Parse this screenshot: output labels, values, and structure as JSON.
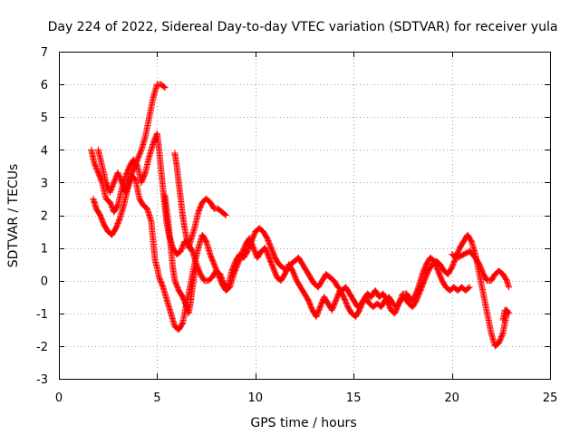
{
  "chart_data": {
    "type": "scatter",
    "title": "Day 224 of 2022, Sidereal Day-to-day VTEC variation (SDTVAR) for receiver yula",
    "xlabel": "GPS time / hours",
    "ylabel": "SDTVAR / TECUs",
    "xlim": [
      0,
      25
    ],
    "ylim": [
      -3,
      7
    ],
    "xticks": [
      0,
      5,
      10,
      15,
      20,
      25
    ],
    "yticks": [
      -3,
      -2,
      -1,
      0,
      1,
      2,
      3,
      4,
      5,
      6,
      7
    ],
    "grid": true,
    "marker": "+",
    "series": [
      {
        "name": "SDTVAR",
        "color": "#ff0000",
        "tracks": [
          [
            [
              1.65,
              4.0
            ],
            [
              1.8,
              3.6
            ],
            [
              2.0,
              3.3
            ],
            [
              2.2,
              3.0
            ],
            [
              2.4,
              2.5
            ],
            [
              2.6,
              2.4
            ],
            [
              2.8,
              2.1
            ],
            [
              3.0,
              2.3
            ],
            [
              3.2,
              2.8
            ],
            [
              3.4,
              3.2
            ],
            [
              3.6,
              3.5
            ],
            [
              3.8,
              3.7
            ],
            [
              4.0,
              3.5
            ],
            [
              4.2,
              3.0
            ],
            [
              4.4,
              3.3
            ],
            [
              4.6,
              3.8
            ],
            [
              4.8,
              4.2
            ],
            [
              5.0,
              4.5
            ],
            [
              5.1,
              4.0
            ],
            [
              5.2,
              3.4
            ],
            [
              5.3,
              2.8
            ],
            [
              5.4,
              2.2
            ],
            [
              5.5,
              1.7
            ],
            [
              5.6,
              1.4
            ],
            [
              5.7,
              1.2
            ],
            [
              5.8,
              1.0
            ],
            [
              6.0,
              0.8
            ],
            [
              6.2,
              0.9
            ],
            [
              6.4,
              1.2
            ],
            [
              6.6,
              1.1
            ],
            [
              6.8,
              0.9
            ],
            [
              7.0,
              0.5
            ],
            [
              7.2,
              0.2
            ],
            [
              7.4,
              0.0
            ],
            [
              7.6,
              0.0
            ],
            [
              7.8,
              0.1
            ],
            [
              8.0,
              0.3
            ],
            [
              8.2,
              0.2
            ],
            [
              8.4,
              -0.1
            ],
            [
              8.6,
              -0.2
            ],
            [
              8.8,
              0.3
            ],
            [
              9.0,
              0.6
            ],
            [
              9.2,
              0.8
            ],
            [
              9.4,
              0.7
            ],
            [
              9.6,
              0.9
            ],
            [
              9.8,
              1.2
            ],
            [
              10.0,
              1.5
            ],
            [
              10.2,
              1.6
            ],
            [
              10.4,
              1.5
            ],
            [
              10.6,
              1.3
            ],
            [
              10.8,
              1.0
            ],
            [
              11.0,
              0.7
            ],
            [
              11.2,
              0.5
            ],
            [
              11.4,
              0.4
            ],
            [
              11.6,
              0.3
            ],
            [
              11.8,
              0.5
            ],
            [
              12.0,
              0.6
            ],
            [
              12.2,
              0.7
            ],
            [
              12.4,
              0.5
            ],
            [
              12.6,
              0.3
            ],
            [
              12.8,
              0.1
            ],
            [
              13.0,
              -0.1
            ],
            [
              13.2,
              -0.2
            ],
            [
              13.4,
              0.0
            ],
            [
              13.6,
              0.2
            ],
            [
              13.8,
              0.1
            ],
            [
              14.0,
              0.0
            ],
            [
              14.2,
              -0.2
            ],
            [
              14.4,
              -0.3
            ],
            [
              14.6,
              -0.2
            ],
            [
              14.8,
              -0.4
            ],
            [
              15.0,
              -0.6
            ],
            [
              15.2,
              -0.8
            ],
            [
              15.4,
              -0.7
            ],
            [
              15.6,
              -0.5
            ],
            [
              15.8,
              -0.7
            ],
            [
              16.0,
              -0.8
            ],
            [
              16.2,
              -0.7
            ],
            [
              16.4,
              -0.8
            ],
            [
              16.6,
              -0.6
            ],
            [
              16.8,
              -0.5
            ],
            [
              17.0,
              -0.7
            ],
            [
              17.2,
              -0.8
            ],
            [
              17.4,
              -0.6
            ],
            [
              17.6,
              -0.5
            ],
            [
              17.8,
              -0.7
            ],
            [
              18.0,
              -0.8
            ],
            [
              18.2,
              -0.6
            ],
            [
              18.4,
              -0.3
            ],
            [
              18.6,
              0.0
            ],
            [
              18.8,
              0.3
            ],
            [
              19.0,
              0.5
            ],
            [
              19.2,
              0.6
            ],
            [
              19.4,
              0.5
            ],
            [
              19.6,
              0.3
            ],
            [
              19.8,
              0.2
            ],
            [
              20.0,
              0.4
            ],
            [
              20.2,
              0.7
            ],
            [
              20.4,
              1.0
            ],
            [
              20.6,
              1.2
            ],
            [
              20.8,
              1.4
            ],
            [
              21.0,
              1.2
            ],
            [
              21.2,
              0.8
            ],
            [
              21.4,
              0.2
            ],
            [
              21.6,
              -0.4
            ],
            [
              21.8,
              -1.0
            ],
            [
              22.0,
              -1.6
            ],
            [
              22.2,
              -2.0
            ],
            [
              22.4,
              -1.9
            ],
            [
              22.6,
              -1.6
            ],
            [
              22.8,
              -1.0
            ]
          ],
          [
            [
              1.75,
              2.5
            ],
            [
              1.9,
              2.2
            ],
            [
              2.1,
              2.0
            ],
            [
              2.3,
              1.7
            ],
            [
              2.5,
              1.5
            ],
            [
              2.7,
              1.4
            ],
            [
              2.9,
              1.6
            ],
            [
              3.1,
              1.9
            ],
            [
              3.3,
              2.3
            ],
            [
              3.5,
              2.8
            ],
            [
              3.7,
              3.2
            ],
            [
              3.9,
              3.1
            ],
            [
              4.1,
              2.5
            ],
            [
              4.3,
              2.3
            ],
            [
              4.5,
              2.2
            ],
            [
              4.7,
              1.8
            ],
            [
              4.8,
              1.2
            ],
            [
              4.9,
              0.6
            ],
            [
              5.0,
              0.4
            ],
            [
              5.1,
              0.1
            ],
            [
              5.3,
              -0.2
            ],
            [
              5.5,
              -0.6
            ],
            [
              5.7,
              -1.0
            ],
            [
              5.9,
              -1.4
            ],
            [
              6.1,
              -1.5
            ],
            [
              6.3,
              -1.3
            ],
            [
              6.5,
              -0.7
            ],
            [
              6.7,
              -0.1
            ],
            [
              6.9,
              0.5
            ],
            [
              7.1,
              1.0
            ],
            [
              7.3,
              1.4
            ],
            [
              7.5,
              1.2
            ],
            [
              7.7,
              0.8
            ],
            [
              7.9,
              0.5
            ],
            [
              8.1,
              0.2
            ],
            [
              8.3,
              -0.1
            ],
            [
              8.5,
              -0.3
            ],
            [
              8.7,
              -0.2
            ],
            [
              8.9,
              0.2
            ],
            [
              9.1,
              0.5
            ],
            [
              9.3,
              0.8
            ],
            [
              9.5,
              1.1
            ],
            [
              9.7,
              1.3
            ],
            [
              9.9,
              1.0
            ],
            [
              10.1,
              0.7
            ],
            [
              10.3,
              0.9
            ],
            [
              10.5,
              1.0
            ],
            [
              10.7,
              0.7
            ],
            [
              10.9,
              0.4
            ],
            [
              11.1,
              0.1
            ],
            [
              11.3,
              0.0
            ],
            [
              11.5,
              0.2
            ],
            [
              11.7,
              0.5
            ],
            [
              11.9,
              0.3
            ],
            [
              12.1,
              0.0
            ],
            [
              12.3,
              -0.2
            ],
            [
              12.5,
              -0.4
            ],
            [
              12.7,
              -0.6
            ],
            [
              12.9,
              -0.9
            ],
            [
              13.1,
              -1.1
            ],
            [
              13.3,
              -0.8
            ],
            [
              13.5,
              -0.5
            ],
            [
              13.7,
              -0.7
            ],
            [
              13.9,
              -0.9
            ],
            [
              14.1,
              -0.6
            ],
            [
              14.3,
              -0.3
            ],
            [
              14.5,
              -0.5
            ],
            [
              14.7,
              -0.8
            ],
            [
              14.9,
              -1.0
            ],
            [
              15.1,
              -1.1
            ],
            [
              15.3,
              -0.9
            ],
            [
              15.5,
              -0.6
            ],
            [
              15.7,
              -0.4
            ],
            [
              15.9,
              -0.5
            ],
            [
              16.1,
              -0.3
            ],
            [
              16.3,
              -0.5
            ],
            [
              16.5,
              -0.4
            ],
            [
              16.7,
              -0.6
            ],
            [
              16.9,
              -0.9
            ],
            [
              17.1,
              -1.0
            ],
            [
              17.3,
              -0.7
            ],
            [
              17.5,
              -0.4
            ],
            [
              17.7,
              -0.4
            ],
            [
              17.9,
              -0.6
            ],
            [
              18.1,
              -0.5
            ],
            [
              18.3,
              -0.2
            ],
            [
              18.5,
              0.2
            ],
            [
              18.7,
              0.5
            ],
            [
              18.9,
              0.7
            ],
            [
              19.1,
              0.6
            ],
            [
              19.3,
              0.3
            ],
            [
              19.5,
              0.0
            ],
            [
              19.7,
              -0.2
            ],
            [
              19.9,
              -0.3
            ],
            [
              20.1,
              -0.2
            ],
            [
              20.3,
              -0.3
            ],
            [
              20.5,
              -0.2
            ],
            [
              20.7,
              -0.3
            ],
            [
              20.9,
              -0.2
            ]
          ],
          [
            [
              2.0,
              4.0
            ],
            [
              2.2,
              3.5
            ],
            [
              2.4,
              3.0
            ],
            [
              2.6,
              2.7
            ],
            [
              2.8,
              3.0
            ],
            [
              3.0,
              3.3
            ],
            [
              3.2,
              3.0
            ],
            [
              3.4,
              2.7
            ],
            [
              3.6,
              3.1
            ],
            [
              3.8,
              3.4
            ],
            [
              4.0,
              3.7
            ],
            [
              4.2,
              4.0
            ],
            [
              4.4,
              4.4
            ],
            [
              4.6,
              5.0
            ],
            [
              4.8,
              5.6
            ],
            [
              5.0,
              6.0
            ],
            [
              5.2,
              6.0
            ],
            [
              5.4,
              5.9
            ]
          ],
          [
            [
              5.4,
              2.6
            ],
            [
              5.5,
              2.1
            ],
            [
              5.6,
              1.6
            ],
            [
              5.7,
              1.0
            ],
            [
              5.8,
              0.4
            ],
            [
              5.9,
              0.0
            ],
            [
              6.1,
              -0.3
            ],
            [
              6.3,
              -0.5
            ],
            [
              6.5,
              -0.8
            ],
            [
              6.6,
              -1.0
            ],
            [
              6.7,
              -0.7
            ],
            [
              6.8,
              -0.2
            ],
            [
              6.9,
              0.2
            ],
            [
              7.0,
              0.4
            ]
          ],
          [
            [
              5.9,
              3.9
            ],
            [
              6.0,
              3.5
            ],
            [
              6.1,
              3.0
            ],
            [
              6.2,
              2.5
            ],
            [
              6.3,
              2.0
            ],
            [
              6.4,
              1.6
            ],
            [
              6.5,
              1.3
            ],
            [
              6.6,
              1.0
            ],
            [
              6.7,
              1.2
            ],
            [
              6.9,
              1.6
            ],
            [
              7.1,
              2.1
            ],
            [
              7.3,
              2.4
            ],
            [
              7.5,
              2.5
            ],
            [
              7.7,
              2.4
            ],
            [
              7.9,
              2.2
            ],
            [
              8.1,
              2.2
            ],
            [
              8.3,
              2.1
            ],
            [
              8.5,
              2.0
            ]
          ],
          [
            [
              20.0,
              0.8
            ],
            [
              20.3,
              0.7
            ],
            [
              20.6,
              0.8
            ],
            [
              20.9,
              0.9
            ],
            [
              21.2,
              0.7
            ],
            [
              21.4,
              0.5
            ],
            [
              21.6,
              0.2
            ],
            [
              21.8,
              0.0
            ],
            [
              22.0,
              0.0
            ],
            [
              22.2,
              0.2
            ],
            [
              22.4,
              0.3
            ],
            [
              22.6,
              0.2
            ],
            [
              22.8,
              0.0
            ],
            [
              22.9,
              -0.2
            ]
          ],
          [
            [
              22.6,
              -1.2
            ],
            [
              22.7,
              -0.9
            ],
            [
              22.8,
              -0.9
            ],
            [
              22.9,
              -1.0
            ]
          ]
        ]
      }
    ]
  }
}
